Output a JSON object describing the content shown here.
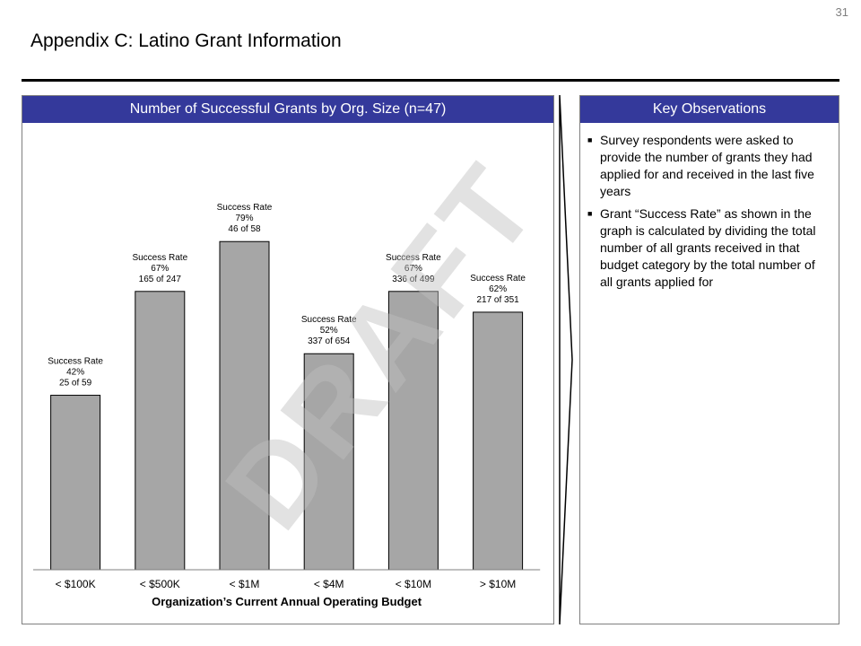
{
  "page_number": "31",
  "page_title": "Appendix C: Latino Grant Information",
  "chart_panel": {
    "header": "Number of Successful Grants by Org. Size (n=47)"
  },
  "observations_panel": {
    "header": "Key Observations",
    "bullets": [
      "Survey respondents were asked to provide the number of grants they had applied for and received in the last five years",
      "Grant “Success Rate” as shown in the graph is calculated by dividing the total number of all grants received in that budget category by the total number of all grants applied for"
    ]
  },
  "watermark": "DRAFT",
  "chart_data": {
    "type": "bar",
    "categories": [
      "< $100K",
      "< $500K",
      "< $1M",
      "< $4M",
      "< $10M",
      "> $10M"
    ],
    "values": [
      42,
      67,
      79,
      52,
      67,
      62
    ],
    "label_title": "Success Rate",
    "label_percent": [
      "42%",
      "67%",
      "79%",
      "52%",
      "67%",
      "62%"
    ],
    "label_counts": [
      "25 of 59",
      "165 of 247",
      "46 of 58",
      "337 of 654",
      "336 of 499",
      "217 of 351"
    ],
    "xlabel": "Organization’s Current Annual Operating Budget",
    "ylabel": "",
    "ylim": [
      0,
      100
    ],
    "grid": false,
    "bar_color": "#a6a6a6"
  }
}
